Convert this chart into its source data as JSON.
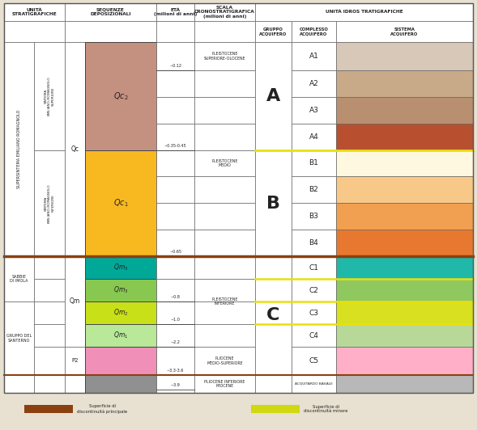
{
  "fig_width": 5.89,
  "fig_height": 5.32,
  "bg_color": "#e8e0d0",
  "row_labels": [
    "A1",
    "A2",
    "A3",
    "A4",
    "B1",
    "B2",
    "B3",
    "B4",
    "C1",
    "C2",
    "C3",
    "C4",
    "C5"
  ],
  "row_colors_sistema": [
    "#d8c8b8",
    "#c8aa88",
    "#b89070",
    "#b85030",
    "#fff8e0",
    "#f8c888",
    "#f0a050",
    "#e87830",
    "#20b8a8",
    "#90c860",
    "#d8e020",
    "#b8d898",
    "#ffb0c8"
  ],
  "seq_colors": {
    "Qc2": "#c49080",
    "Qc1": "#f8b820",
    "Qm3": "#00a898",
    "Qm3b": "#88c850",
    "Qm2": "#c8e018",
    "Qm1": "#b8e898",
    "P2": "#f090b8",
    "basal": "#909090"
  },
  "brown_line": "#8B4010",
  "yellow_line": "#e8e010",
  "legend_brown": "#8B4010",
  "legend_yellow": "#d0d810"
}
